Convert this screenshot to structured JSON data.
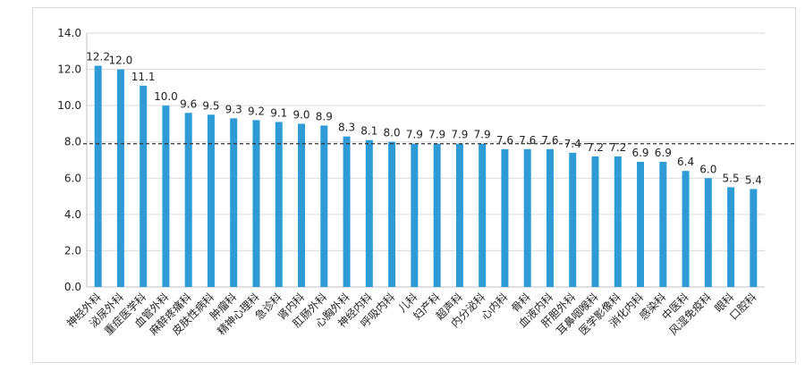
{
  "chart_data": {
    "type": "bar",
    "categories": [
      "神经外科",
      "泌尿外科",
      "重症医学科",
      "血管外科",
      "麻醉疼痛科",
      "皮肤性病科",
      "肿瘤科",
      "精神心理科",
      "急诊科",
      "肾内科",
      "肛肠外科",
      "心胸外科",
      "神经内科",
      "呼吸内科",
      "儿科",
      "妇产科",
      "超声科",
      "内分泌科",
      "心内科",
      "骨科",
      "血液内科",
      "肝胆外科",
      "耳鼻咽喉科",
      "医学影像科",
      "消化内科",
      "感染科",
      "中医科",
      "风湿免疫科",
      "眼科",
      "口腔科"
    ],
    "values": [
      12.2,
      12.0,
      11.1,
      10.0,
      9.6,
      9.5,
      9.3,
      9.2,
      9.1,
      9.0,
      8.9,
      8.3,
      8.1,
      8.0,
      7.9,
      7.9,
      7.9,
      7.9,
      7.6,
      7.6,
      7.6,
      7.4,
      7.2,
      7.2,
      6.9,
      6.9,
      6.4,
      6.0,
      5.5,
      5.4
    ],
    "value_labels": [
      "12.2",
      "12.0",
      "11.1",
      "10.0",
      "9.6",
      "9.5",
      "9.3",
      "9.2",
      "9.1",
      "9.0",
      "8.9",
      "8.3",
      "8.1",
      "8.0",
      "7.9",
      "7.9",
      "7.9",
      "7.9",
      "7.6",
      "7.6",
      "7.6",
      "7.4",
      "7.2",
      "7.2",
      "6.9",
      "6.9",
      "6.4",
      "6.0",
      "5.5",
      "5.4"
    ],
    "ylim": [
      0,
      14
    ],
    "yticks": [
      "0.0",
      "2.0",
      "4.0",
      "6.0",
      "8.0",
      "10.0",
      "12.0",
      "14.0"
    ],
    "reference_line": 7.9,
    "grid": true,
    "bar_color": "#2e9bd6",
    "grid_color": "#d9d9d9",
    "reference_line_color": "#333333"
  }
}
